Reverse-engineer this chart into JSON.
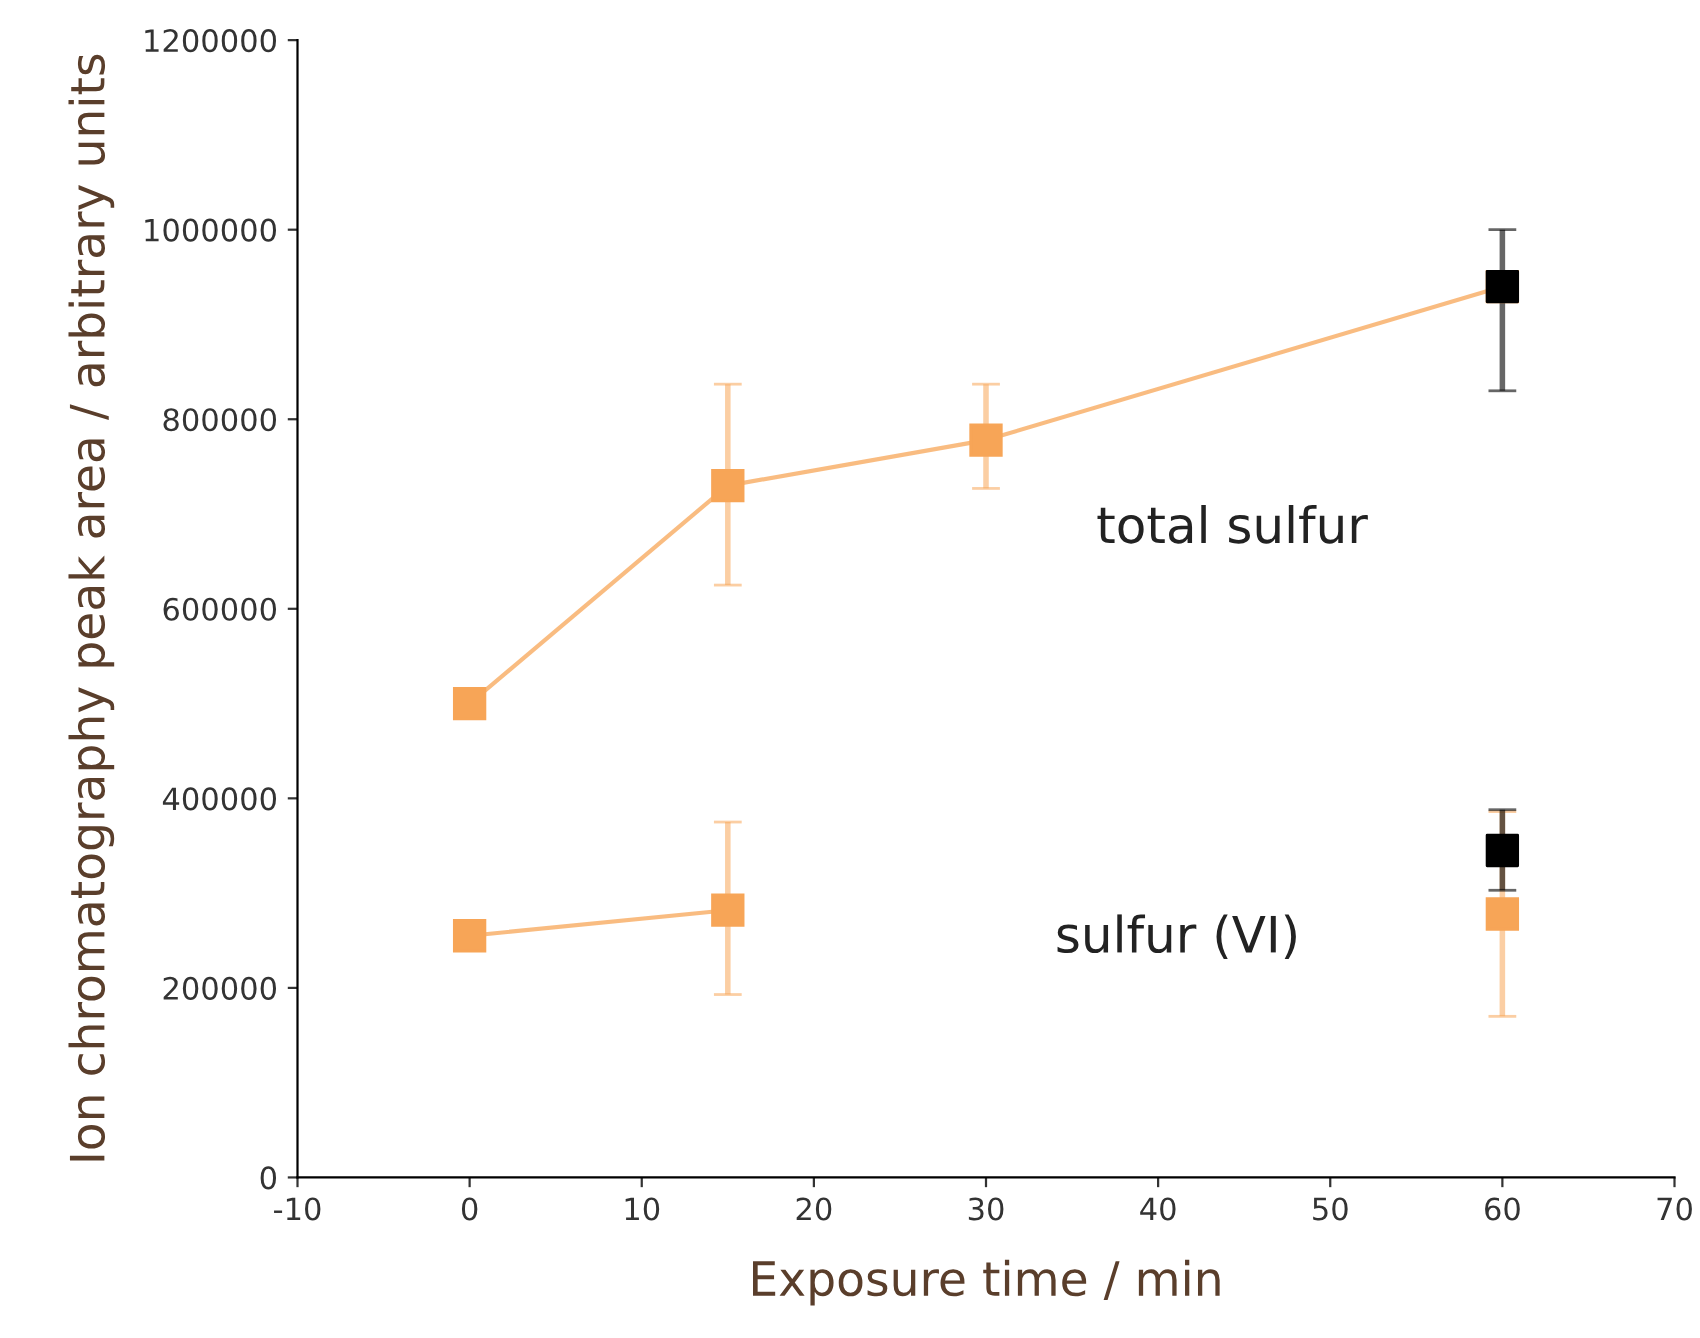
{
  "chart_data": {
    "type": "line",
    "xlabel": "Exposure time / min",
    "ylabel": "Ion chromatography peak area / arbitrary units",
    "xlim": [
      -10,
      70
    ],
    "xticks": [
      -10,
      0,
      10,
      20,
      30,
      40,
      50,
      60,
      70
    ],
    "ylim": [
      0,
      1200000
    ],
    "yticks": [
      0,
      200000,
      400000,
      600000,
      800000,
      1000000,
      1200000
    ],
    "grid": false,
    "legend": false,
    "marker": "square",
    "line_style": "solid",
    "series": [
      {
        "color": "#f7a557",
        "x": [
          0,
          15,
          30,
          60
        ],
        "values": [
          500000,
          730000,
          778000,
          940000
        ],
        "errors": [
          null,
          [
            625000,
            837000
          ],
          [
            727000,
            837000
          ],
          null
        ]
      },
      {
        "color": "#f7a557",
        "x": [
          0,
          15,
          30,
          60
        ],
        "values": [
          255000,
          282000,
          null,
          278000
        ],
        "errors": [
          null,
          [
            193000,
            375000
          ],
          null,
          [
            170000,
            386000
          ]
        ]
      },
      {
        "type": "scatter",
        "color": "#000000",
        "x": [
          60
        ],
        "values": [
          940000
        ],
        "errors": [
          [
            830000,
            1000000
          ]
        ]
      },
      {
        "type": "scatter",
        "color": "#000000",
        "x": [
          60
        ],
        "values": [
          345000
        ],
        "errors": [
          [
            303000,
            388000
          ]
        ]
      }
    ],
    "annotations": [
      "total sulfur",
      "sulfur (VI)"
    ]
  }
}
